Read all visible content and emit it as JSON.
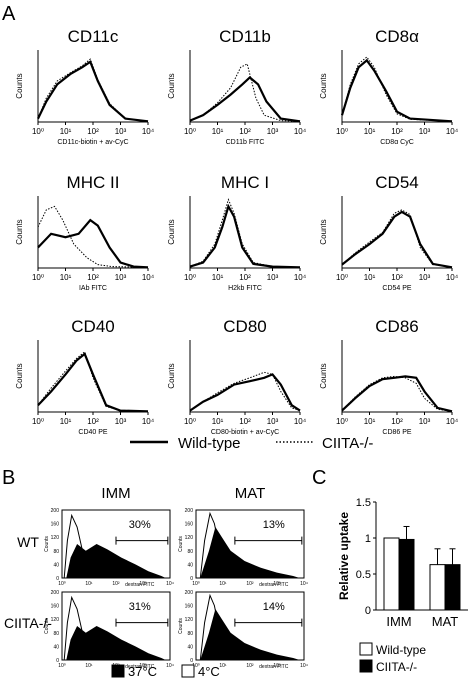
{
  "panel_labels": {
    "a": "A",
    "b": "B",
    "c": "C"
  },
  "chart_data": [
    {
      "type": "histogram-overlay",
      "panel": "A",
      "ylabel": "Counts",
      "x_tick_labels": [
        "10⁰",
        "10¹",
        "10²",
        "10³",
        "10⁴"
      ],
      "xscale": "log",
      "xlim": [
        1,
        10000
      ],
      "legend": {
        "position": "bottom",
        "items": [
          {
            "name": "Wild-type",
            "style": "solid"
          },
          {
            "name": "CIITA-/-",
            "style": "dotted",
            "sup": "-/-"
          }
        ]
      },
      "subplots": [
        {
          "title": "CD11c",
          "xlabel": "CD11c-biotin + av-CyC",
          "wt": [
            [
              1,
              0.05
            ],
            [
              2,
              0.3
            ],
            [
              5,
              0.55
            ],
            [
              15,
              0.7
            ],
            [
              40,
              0.8
            ],
            [
              80,
              0.88
            ],
            [
              150,
              0.6
            ],
            [
              400,
              0.25
            ],
            [
              1500,
              0.05
            ],
            [
              10000,
              0.01
            ]
          ],
          "ko": [
            [
              1,
              0.05
            ],
            [
              2,
              0.35
            ],
            [
              5,
              0.6
            ],
            [
              15,
              0.72
            ],
            [
              40,
              0.82
            ],
            [
              80,
              0.92
            ],
            [
              150,
              0.62
            ],
            [
              400,
              0.27
            ],
            [
              1500,
              0.05
            ],
            [
              10000,
              0.01
            ]
          ]
        },
        {
          "title": "CD11b",
          "xlabel": "CD11b FITC",
          "wt": [
            [
              1,
              0.02
            ],
            [
              3,
              0.1
            ],
            [
              10,
              0.25
            ],
            [
              30,
              0.4
            ],
            [
              80,
              0.55
            ],
            [
              150,
              0.65
            ],
            [
              300,
              0.55
            ],
            [
              600,
              0.3
            ],
            [
              2000,
              0.05
            ],
            [
              10000,
              0.01
            ]
          ],
          "ko": [
            [
              1,
              0.02
            ],
            [
              3,
              0.1
            ],
            [
              10,
              0.28
            ],
            [
              30,
              0.5
            ],
            [
              70,
              0.8
            ],
            [
              120,
              0.85
            ],
            [
              250,
              0.35
            ],
            [
              500,
              0.1
            ],
            [
              2000,
              0.02
            ],
            [
              10000,
              0.01
            ]
          ]
        },
        {
          "title": "CD8α",
          "xlabel": "CD8α CyC",
          "wt": [
            [
              1,
              0.1
            ],
            [
              2,
              0.5
            ],
            [
              4,
              0.8
            ],
            [
              8,
              0.9
            ],
            [
              15,
              0.75
            ],
            [
              40,
              0.45
            ],
            [
              100,
              0.15
            ],
            [
              300,
              0.05
            ],
            [
              10000,
              0.01
            ]
          ],
          "ko": [
            [
              1,
              0.1
            ],
            [
              2,
              0.55
            ],
            [
              4,
              0.85
            ],
            [
              8,
              0.95
            ],
            [
              15,
              0.8
            ],
            [
              40,
              0.4
            ],
            [
              100,
              0.12
            ],
            [
              300,
              0.04
            ],
            [
              10000,
              0.01
            ]
          ]
        },
        {
          "title": "MHC II",
          "xlabel": "IAb FITC",
          "wt": [
            [
              1,
              0.3
            ],
            [
              3,
              0.5
            ],
            [
              10,
              0.45
            ],
            [
              30,
              0.5
            ],
            [
              80,
              0.7
            ],
            [
              150,
              0.62
            ],
            [
              400,
              0.3
            ],
            [
              1000,
              0.08
            ],
            [
              3000,
              0.02
            ],
            [
              10000,
              0.01
            ]
          ],
          "ko": [
            [
              1,
              0.6
            ],
            [
              2,
              0.85
            ],
            [
              4,
              0.9
            ],
            [
              8,
              0.7
            ],
            [
              20,
              0.35
            ],
            [
              60,
              0.15
            ],
            [
              150,
              0.05
            ],
            [
              500,
              0.02
            ],
            [
              10000,
              0.01
            ]
          ]
        },
        {
          "title": "MHC I",
          "xlabel": "H2kb FITC",
          "wt": [
            [
              1,
              0.02
            ],
            [
              3,
              0.08
            ],
            [
              8,
              0.3
            ],
            [
              15,
              0.6
            ],
            [
              25,
              0.9
            ],
            [
              40,
              0.75
            ],
            [
              80,
              0.3
            ],
            [
              200,
              0.06
            ],
            [
              1000,
              0.02
            ],
            [
              10000,
              0.01
            ]
          ],
          "ko": [
            [
              1,
              0.02
            ],
            [
              3,
              0.1
            ],
            [
              8,
              0.35
            ],
            [
              15,
              0.7
            ],
            [
              25,
              1.0
            ],
            [
              40,
              0.8
            ],
            [
              80,
              0.35
            ],
            [
              200,
              0.08
            ],
            [
              1000,
              0.02
            ],
            [
              10000,
              0.01
            ]
          ]
        },
        {
          "title": "CD54",
          "xlabel": "CD54 PE",
          "wt": [
            [
              1,
              0.05
            ],
            [
              3,
              0.2
            ],
            [
              10,
              0.35
            ],
            [
              30,
              0.5
            ],
            [
              80,
              0.75
            ],
            [
              150,
              0.82
            ],
            [
              300,
              0.75
            ],
            [
              700,
              0.35
            ],
            [
              2000,
              0.06
            ],
            [
              10000,
              0.01
            ]
          ],
          "ko": [
            [
              1,
              0.05
            ],
            [
              3,
              0.22
            ],
            [
              10,
              0.38
            ],
            [
              30,
              0.52
            ],
            [
              80,
              0.8
            ],
            [
              150,
              0.85
            ],
            [
              300,
              0.78
            ],
            [
              700,
              0.3
            ],
            [
              2000,
              0.05
            ],
            [
              10000,
              0.01
            ]
          ]
        },
        {
          "title": "CD40",
          "xlabel": "CD40 PE",
          "wt": [
            [
              1,
              0.1
            ],
            [
              3,
              0.3
            ],
            [
              10,
              0.55
            ],
            [
              25,
              0.75
            ],
            [
              50,
              0.85
            ],
            [
              100,
              0.55
            ],
            [
              300,
              0.1
            ],
            [
              1000,
              0.02
            ],
            [
              10000,
              0.01
            ]
          ],
          "ko": [
            [
              1,
              0.1
            ],
            [
              3,
              0.35
            ],
            [
              10,
              0.6
            ],
            [
              25,
              0.78
            ],
            [
              50,
              0.88
            ],
            [
              100,
              0.5
            ],
            [
              300,
              0.08
            ],
            [
              1000,
              0.02
            ],
            [
              10000,
              0.01
            ]
          ]
        },
        {
          "title": "CD80",
          "xlabel": "CD80-biotin + av-CyC",
          "wt": [
            [
              1,
              0.02
            ],
            [
              3,
              0.15
            ],
            [
              10,
              0.25
            ],
            [
              40,
              0.4
            ],
            [
              150,
              0.45
            ],
            [
              500,
              0.5
            ],
            [
              1000,
              0.55
            ],
            [
              2000,
              0.4
            ],
            [
              5000,
              0.1
            ],
            [
              10000,
              0.02
            ]
          ],
          "ko": [
            [
              1,
              0.02
            ],
            [
              3,
              0.15
            ],
            [
              10,
              0.28
            ],
            [
              40,
              0.42
            ],
            [
              150,
              0.5
            ],
            [
              500,
              0.58
            ],
            [
              1000,
              0.55
            ],
            [
              2000,
              0.3
            ],
            [
              5000,
              0.06
            ],
            [
              10000,
              0.02
            ]
          ]
        },
        {
          "title": "CD86",
          "xlabel": "CD86 PE",
          "wt": [
            [
              1,
              0.02
            ],
            [
              3,
              0.2
            ],
            [
              10,
              0.38
            ],
            [
              30,
              0.48
            ],
            [
              80,
              0.5
            ],
            [
              200,
              0.52
            ],
            [
              500,
              0.5
            ],
            [
              1000,
              0.3
            ],
            [
              3000,
              0.06
            ],
            [
              10000,
              0.01
            ]
          ],
          "ko": [
            [
              1,
              0.02
            ],
            [
              3,
              0.22
            ],
            [
              10,
              0.4
            ],
            [
              30,
              0.5
            ],
            [
              80,
              0.52
            ],
            [
              200,
              0.5
            ],
            [
              500,
              0.42
            ],
            [
              1000,
              0.2
            ],
            [
              3000,
              0.04
            ],
            [
              10000,
              0.01
            ]
          ]
        }
      ]
    },
    {
      "type": "histogram-overlay",
      "panel": "B",
      "columns": [
        "IMM",
        "MAT"
      ],
      "rows": [
        "WT",
        "CIITA-/-"
      ],
      "xlabel": "dextran FITC",
      "ylabel": "Counts",
      "y_tick_labels": [
        "0",
        "40",
        "80",
        "120",
        "160",
        "200"
      ],
      "x_tick_labels": [
        "10⁰",
        "10¹",
        "10²",
        "10³",
        "10⁴"
      ],
      "legend": [
        {
          "name": "37°C",
          "fill": "#000000"
        },
        {
          "name": "4°C",
          "fill": "#ffffff"
        }
      ],
      "subplots": [
        {
          "row": "WT",
          "col": "IMM",
          "percent": "30%"
        },
        {
          "row": "WT",
          "col": "MAT",
          "percent": "13%"
        },
        {
          "row": "CIITA-/-",
          "col": "IMM",
          "percent": "31%"
        },
        {
          "row": "CIITA-/-",
          "col": "MAT",
          "percent": "14%"
        }
      ]
    },
    {
      "type": "bar",
      "panel": "C",
      "categories": [
        "IMM",
        "MAT"
      ],
      "ylabel": "Relative uptake",
      "ylim": [
        0,
        1.5
      ],
      "y_tick_labels": [
        "0",
        "0.5",
        "1",
        "1.5"
      ],
      "series": [
        {
          "name": "Wild-type",
          "fill": "#ffffff",
          "values": [
            1.0,
            0.63
          ],
          "errors": [
            0.0,
            0.22
          ]
        },
        {
          "name": "CIITA-/-",
          "fill": "#000000",
          "values": [
            0.98,
            0.63
          ],
          "errors": [
            0.18,
            0.22
          ]
        }
      ]
    }
  ]
}
